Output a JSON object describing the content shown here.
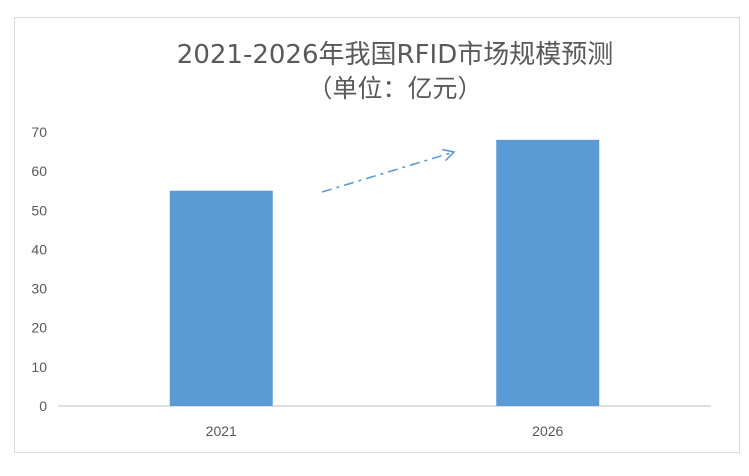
{
  "chart_data": {
    "type": "bar",
    "title": "2021-2026年我国RFID市场规模预测",
    "subtitle": "（单位：亿元）",
    "categories": [
      "2021",
      "2026"
    ],
    "values": [
      55,
      68
    ],
    "yticks": [
      "0",
      "10",
      "20",
      "30",
      "40",
      "50",
      "60",
      "70"
    ],
    "ylim": [
      0,
      70
    ],
    "xlabel": "",
    "ylabel": "",
    "grid": false,
    "bar_color": "#5B9BD5",
    "annotation": "dash-dot-arrow-up-right"
  }
}
